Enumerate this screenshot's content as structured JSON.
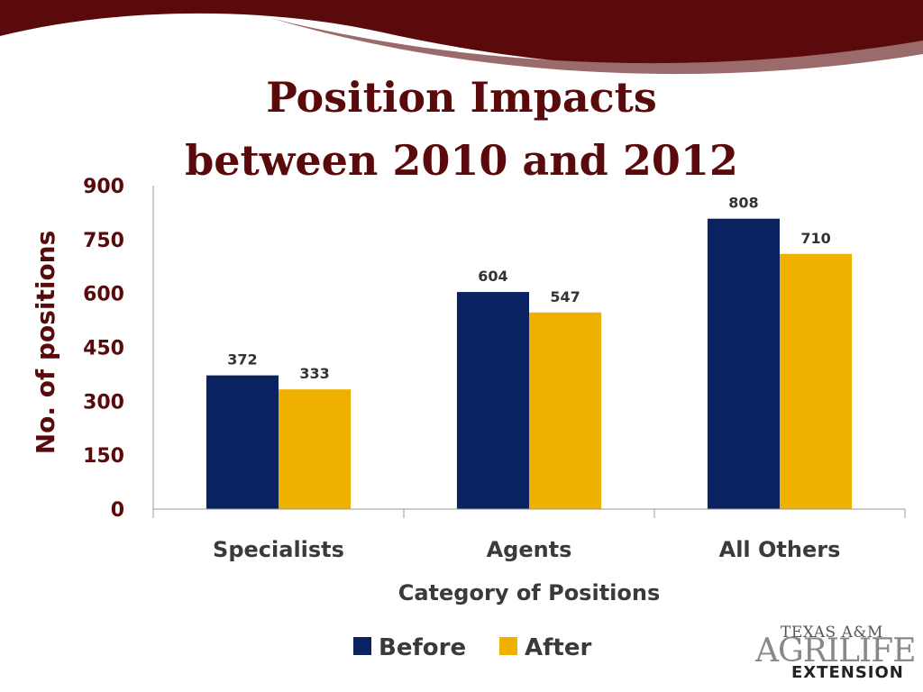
{
  "slide": {
    "title_line1": "Position Impacts",
    "title_line2": "between 2010 and 2012"
  },
  "colors": {
    "banner_dark": "#5a0a0a",
    "banner_light": "#9b6a6a",
    "title": "#5a0a0a",
    "before": "#0b2260",
    "after": "#f0b000"
  },
  "logo": {
    "line1": "TEXAS A&M",
    "line2": "AGRILIFE",
    "line3": "EXTENSION"
  },
  "chart_data": {
    "type": "bar",
    "categories": [
      "Specialists",
      "Agents",
      "All Others"
    ],
    "series": [
      {
        "name": "Before",
        "values": [
          372,
          604,
          808
        ],
        "color": "#0b2260"
      },
      {
        "name": "After",
        "values": [
          333,
          547,
          710
        ],
        "color": "#f0b000"
      }
    ],
    "xlabel": "Category of Positions",
    "ylabel": "No. of positions",
    "ylim": [
      0,
      900
    ],
    "yticks": [
      0,
      150,
      300,
      450,
      600,
      750,
      900
    ],
    "data_labels": true,
    "grid": false,
    "legend_position": "bottom"
  }
}
